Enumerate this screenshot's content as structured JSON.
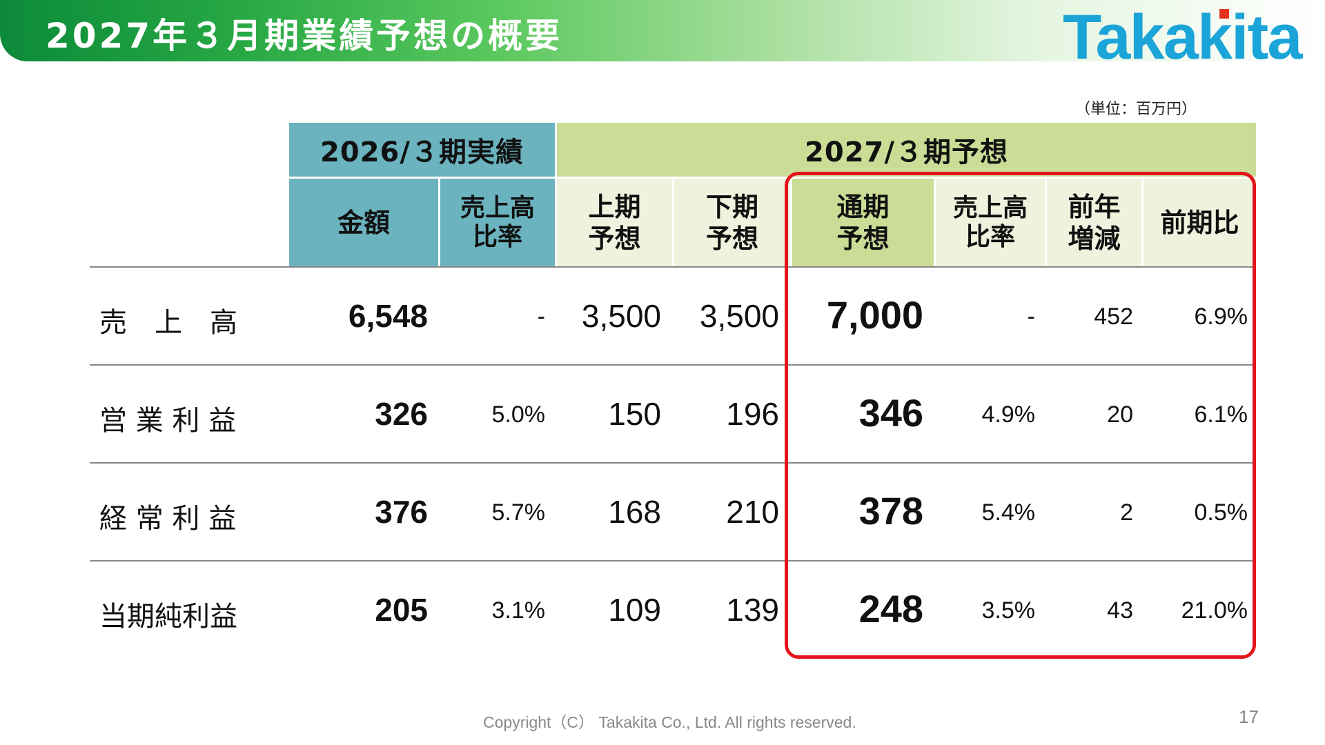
{
  "header": {
    "title": "2027年３月期業績予想の概要",
    "logo_text": "Takakita"
  },
  "unit_label": "（単位：百万円）",
  "table": {
    "group_actual": "2026/３期実績",
    "group_forecast": "2027/３期予想",
    "columns": {
      "amount": "金額",
      "ratio1_line1": "売上高",
      "ratio1_line2": "比率",
      "h1_line1": "上期",
      "h1_line2": "予想",
      "h2_line1": "下期",
      "h2_line2": "予想",
      "full_line1": "通期",
      "full_line2": "予想",
      "ratio2_line1": "売上高",
      "ratio2_line2": "比率",
      "yoy_line1": "前年",
      "yoy_line2": "増減",
      "change": "前期比"
    },
    "rows": [
      {
        "label": "売　上　高",
        "amount": "6,548",
        "ratio1": "-",
        "h1": "3,500",
        "h2": "3,500",
        "full": "7,000",
        "ratio2": "-",
        "yoy": "452",
        "change": "6.9%"
      },
      {
        "label": "営 業 利 益",
        "amount": "326",
        "ratio1": "5.0%",
        "h1": "150",
        "h2": "196",
        "full": "346",
        "ratio2": "4.9%",
        "yoy": "20",
        "change": "6.1%"
      },
      {
        "label": "経 常 利 益",
        "amount": "376",
        "ratio1": "5.7%",
        "h1": "168",
        "h2": "210",
        "full": "378",
        "ratio2": "5.4%",
        "yoy": "2",
        "change": "0.5%"
      },
      {
        "label": "当期純利益",
        "amount": "205",
        "ratio1": "3.1%",
        "h1": "109",
        "h2": "139",
        "full": "248",
        "ratio2": "3.5%",
        "yoy": "43",
        "change": "21.0%"
      }
    ]
  },
  "footer": {
    "copyright": "Copyright（C） Takakita Co., Ltd. All rights reserved.",
    "page_number": "17"
  },
  "colors": {
    "header_teal": "#6ab3bf",
    "header_green": "#cbdc96",
    "header_light": "#eef3de",
    "highlight_border": "#e4141c",
    "logo_blue": "#1ba4d8"
  }
}
